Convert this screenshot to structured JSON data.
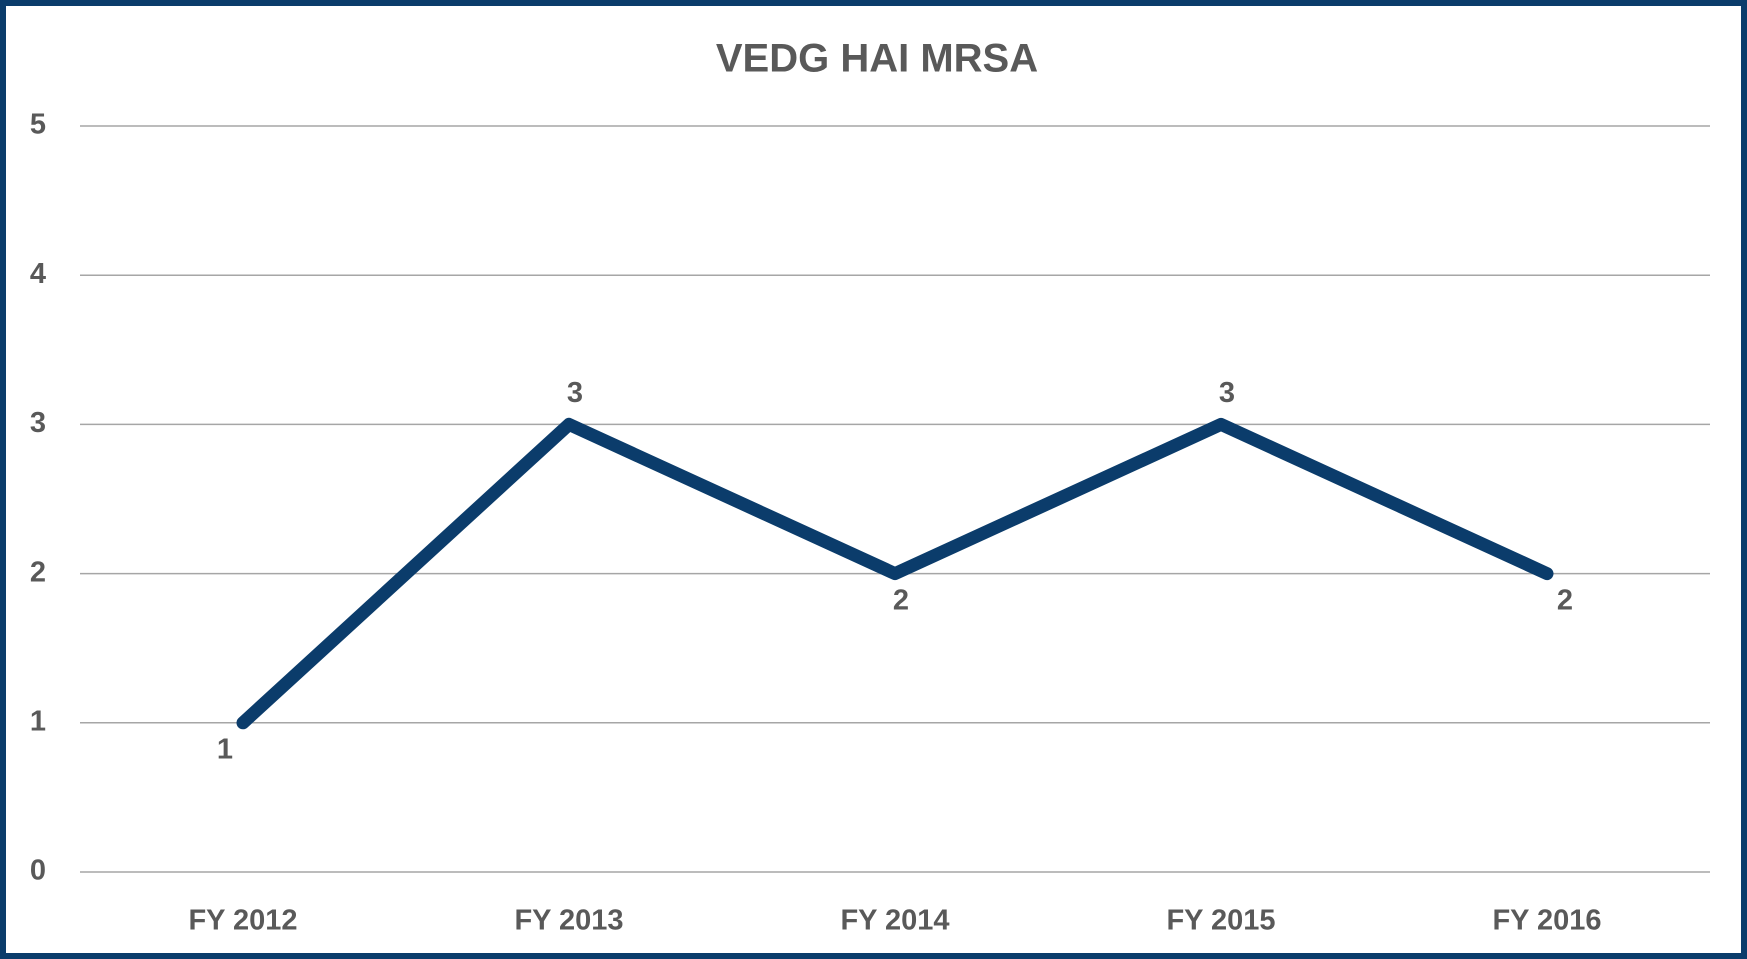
{
  "chart_data": {
    "type": "line",
    "title": "VEDG HAI MRSA",
    "categories": [
      "FY 2012",
      "FY 2013",
      "FY 2014",
      "FY 2015",
      "FY 2016"
    ],
    "series": [
      {
        "color": "#0b3c6b",
        "values": [
          1,
          3,
          2,
          3,
          2
        ]
      }
    ],
    "ylim": [
      0,
      5
    ],
    "yticks": [
      0,
      1,
      2,
      3,
      4,
      5
    ],
    "grid": true
  }
}
